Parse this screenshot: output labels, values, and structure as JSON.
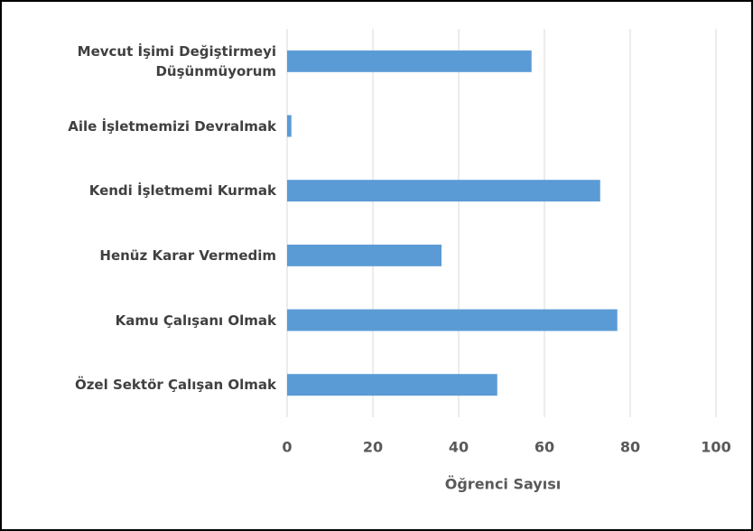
{
  "chart_data": {
    "type": "barh",
    "categories": [
      "Mevcut İşimi Değiştirmeyi Düşünmüyorum",
      "Aile İşletmemizi Devralmak",
      "Kendi İşletmemi Kurmak",
      "Henüz Karar Vermedim",
      "Kamu Çalışanı Olmak",
      "Özel Sektör Çalışan Olmak"
    ],
    "values": [
      57,
      1,
      73,
      36,
      77,
      49
    ],
    "color": "#5b9bd5",
    "xlabel": "Öğrenci Sayısı",
    "xlim": [
      0,
      100
    ],
    "xticks": [
      0,
      20,
      40,
      60,
      80,
      100
    ],
    "grid": true
  }
}
